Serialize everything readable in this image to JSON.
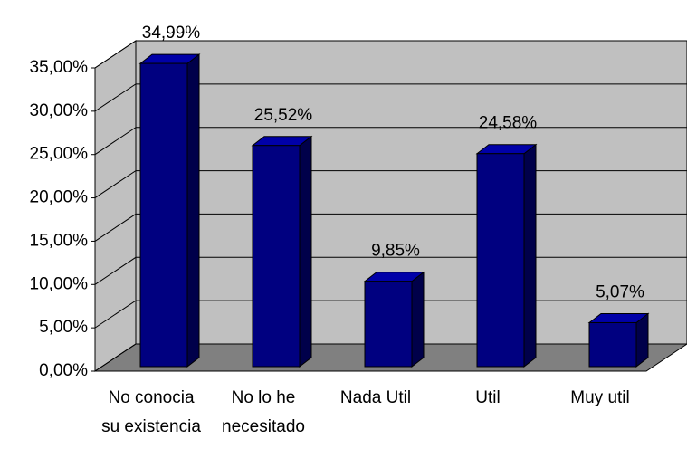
{
  "chart_data": {
    "type": "bar3d",
    "categories": [
      "No conocia su existencia",
      "No lo he necesitado",
      "Nada Util",
      "Util",
      "Muy util"
    ],
    "values": [
      34.99,
      25.52,
      9.85,
      24.58,
      5.07
    ],
    "value_labels": [
      "34,99%",
      "25,52%",
      "9,85%",
      "24,58%",
      "5,07%"
    ],
    "color": "#000080",
    "ylim": [
      0,
      35
    ],
    "yticks": [
      {
        "value": 0,
        "label": "0,00%"
      },
      {
        "value": 5,
        "label": "5,00%"
      },
      {
        "value": 10,
        "label": "10,00%"
      },
      {
        "value": 15,
        "label": "15,00%"
      },
      {
        "value": 20,
        "label": "20,00%"
      },
      {
        "value": 25,
        "label": "25,00%"
      },
      {
        "value": 30,
        "label": "30,00%"
      },
      {
        "value": 35,
        "label": "35,00%"
      }
    ],
    "grid": true
  }
}
